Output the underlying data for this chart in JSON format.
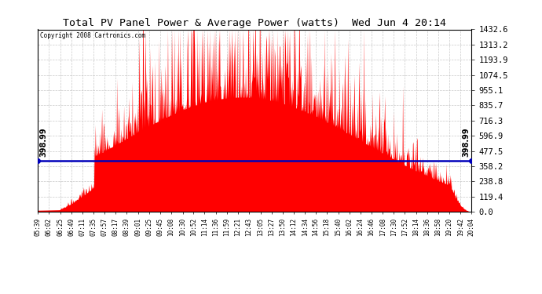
{
  "title": "Total PV Panel Power & Average Power (watts)  Wed Jun 4 20:14",
  "copyright": "Copyright 2008 Cartronics.com",
  "avg_power": 398.99,
  "y_max": 1432.6,
  "y_ticks": [
    0.0,
    119.4,
    238.8,
    358.2,
    477.5,
    596.9,
    716.3,
    835.7,
    955.1,
    1074.5,
    1193.9,
    1313.2,
    1432.6
  ],
  "bar_color": "#FF0000",
  "avg_line_color": "#0000BB",
  "background_color": "#FFFFFF",
  "grid_color": "#BBBBBB",
  "x_tick_labels": [
    "05:39",
    "06:02",
    "06:25",
    "06:49",
    "07:11",
    "07:35",
    "07:57",
    "08:17",
    "08:39",
    "09:01",
    "09:25",
    "09:45",
    "10:08",
    "10:30",
    "10:52",
    "11:14",
    "11:36",
    "11:59",
    "12:21",
    "12:43",
    "13:05",
    "13:27",
    "13:50",
    "14:12",
    "14:34",
    "14:56",
    "15:18",
    "15:40",
    "16:02",
    "16:24",
    "16:46",
    "17:08",
    "17:30",
    "17:52",
    "18:14",
    "18:36",
    "18:58",
    "19:20",
    "19:42",
    "20:04"
  ],
  "figsize": [
    6.9,
    3.75
  ],
  "dpi": 100
}
